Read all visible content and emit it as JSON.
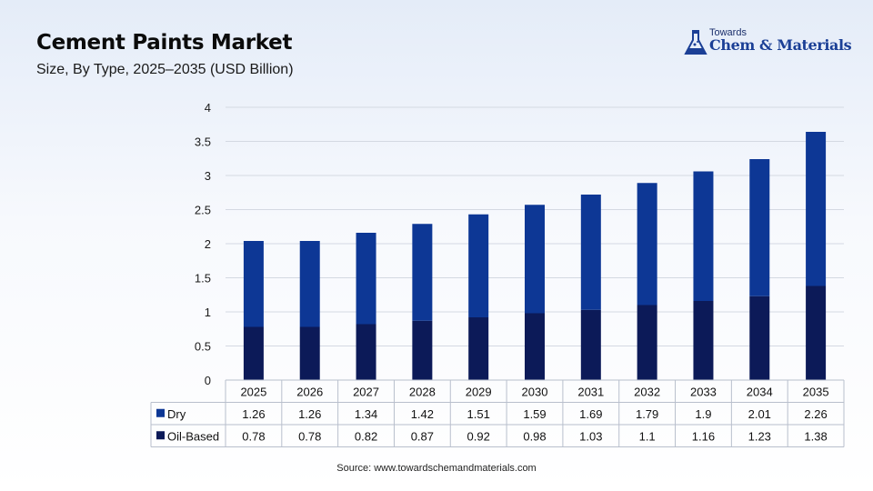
{
  "header": {
    "title": "Cement Paints Market",
    "subtitle": "Size, By Type, 2025–2035 (USD Billion)"
  },
  "logo": {
    "top": "Towards",
    "main": "Chem & Materials",
    "icon": "flask-icon"
  },
  "source": "Source:  www.towardschemandmaterials.com",
  "colors": {
    "dry": "#0d3795",
    "oil_based": "#0c1a58",
    "grid": "#d4d9e2",
    "table_border": "#b8bfcc"
  },
  "chart_data": {
    "type": "bar",
    "stacked": true,
    "categories": [
      "2025",
      "2026",
      "2027",
      "2028",
      "2029",
      "2030",
      "2031",
      "2032",
      "2033",
      "2034",
      "2035"
    ],
    "series": [
      {
        "name": "Oil-Based",
        "values": [
          0.78,
          0.78,
          0.82,
          0.87,
          0.92,
          0.98,
          1.03,
          1.1,
          1.16,
          1.23,
          1.38
        ]
      },
      {
        "name": "Dry",
        "values": [
          1.26,
          1.26,
          1.34,
          1.42,
          1.51,
          1.59,
          1.69,
          1.79,
          1.9,
          2.01,
          2.26
        ]
      }
    ],
    "table_rows": [
      {
        "name": "Dry",
        "labels": [
          "1.26",
          "1.26",
          "1.34",
          "1.42",
          "1.51",
          "1.59",
          "1.69",
          "1.79",
          "1.9",
          "2.01",
          "2.26"
        ]
      },
      {
        "name": "Oil-Based",
        "labels": [
          "0.78",
          "0.78",
          "0.82",
          "0.87",
          "0.92",
          "0.98",
          "1.03",
          "1.1",
          "1.16",
          "1.23",
          "1.38"
        ]
      }
    ],
    "y_ticks": [
      "0",
      "0.5",
      "1",
      "1.5",
      "2",
      "2.5",
      "3",
      "3.5",
      "4"
    ],
    "ylim": [
      0,
      4
    ],
    "grid": true,
    "legend": "data-table"
  }
}
